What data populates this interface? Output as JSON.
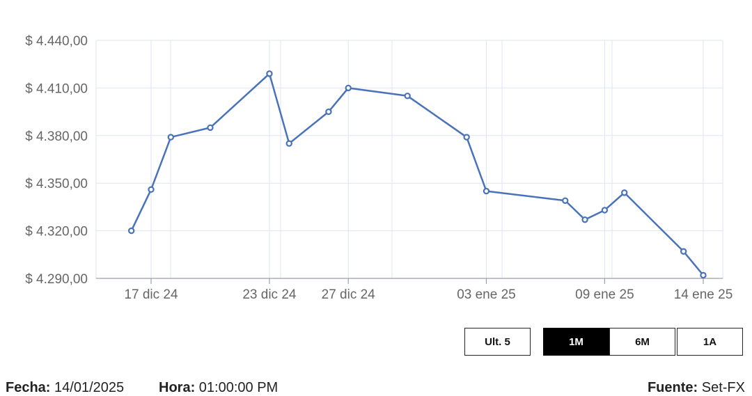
{
  "chart_data": {
    "type": "line",
    "title": "",
    "xlabel": "",
    "ylabel": "",
    "x_ticks": [
      "17 dic 24",
      "23 dic 24",
      "27 dic 24",
      "03 ene 25",
      "09 ene 25",
      "14 ene 25"
    ],
    "y_ticks": [
      "$ 4.290,00",
      "$ 4.320,00",
      "$ 4.350,00",
      "$ 4.380,00",
      "$ 4.410,00",
      "$ 4.440,00"
    ],
    "ylim": [
      4290,
      4440
    ],
    "grid": true,
    "line_color": "#4a72b8",
    "grid_color": "#dce6f2",
    "series": [
      {
        "x": [
          "16 dic 24",
          "17 dic 24",
          "18 dic 24",
          "20 dic 24",
          "23 dic 24",
          "24 dic 24",
          "26 dic 24",
          "27 dic 24",
          "30 dic 24",
          "02 ene 25",
          "03 ene 25",
          "07 ene 25",
          "08 ene 25",
          "09 ene 25",
          "10 ene 25",
          "13 ene 25",
          "14 ene 25"
        ],
        "values": [
          4320,
          4346,
          4379,
          4385,
          4419,
          4375,
          4395,
          4410,
          4405,
          4379,
          4345,
          4339,
          4327,
          4333,
          4344,
          4307,
          4292
        ]
      }
    ]
  },
  "range_buttons": [
    {
      "label": "Ult. 5",
      "active": false
    },
    {
      "label": "1M",
      "active": true
    },
    {
      "label": "6M",
      "active": false
    },
    {
      "label": "1A",
      "active": false
    }
  ],
  "footer": {
    "fecha_label": "Fecha:",
    "fecha_value": "14/01/2025",
    "hora_label": "Hora:",
    "hora_value": "01:00:00 PM",
    "fuente_label": "Fuente:",
    "fuente_value": "Set-FX"
  }
}
